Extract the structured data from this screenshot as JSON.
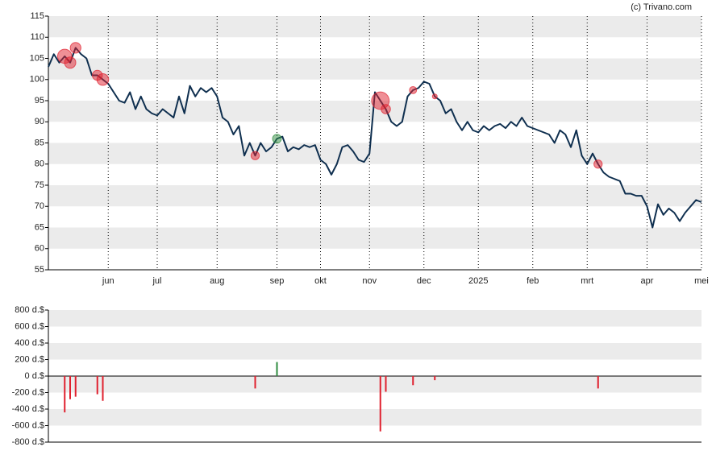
{
  "chart_data": [
    {
      "type": "line",
      "source": "(c) Trivano.com",
      "color": "#0f2f4f",
      "grid": true,
      "stripe_color": "#ebebeb",
      "categories": [
        null,
        null,
        null,
        null,
        null,
        null,
        null,
        null,
        null,
        null,
        null,
        "jun",
        null,
        null,
        null,
        null,
        null,
        null,
        null,
        null,
        "jul",
        null,
        null,
        null,
        null,
        null,
        null,
        null,
        null,
        null,
        null,
        "aug",
        null,
        null,
        null,
        null,
        null,
        null,
        null,
        null,
        null,
        null,
        "sep",
        null,
        null,
        null,
        null,
        null,
        null,
        null,
        "okt",
        null,
        null,
        null,
        null,
        null,
        null,
        null,
        null,
        "nov",
        null,
        null,
        null,
        null,
        null,
        null,
        null,
        null,
        null,
        "dec",
        null,
        null,
        null,
        null,
        null,
        null,
        null,
        null,
        null,
        "2025",
        null,
        null,
        null,
        null,
        null,
        null,
        null,
        null,
        null,
        "feb",
        null,
        null,
        null,
        null,
        null,
        null,
        null,
        null,
        null,
        "mrt",
        null,
        null,
        null,
        null,
        null,
        null,
        null,
        null,
        null,
        null,
        "apr",
        null,
        null,
        null,
        null,
        null,
        null,
        null,
        null,
        null,
        "mei"
      ],
      "values": [
        103,
        106,
        104,
        105.5,
        104,
        107.5,
        106,
        105,
        101,
        101,
        100,
        99,
        97,
        95,
        94.5,
        97,
        93,
        96,
        93,
        92,
        91.5,
        93,
        92,
        91,
        96,
        92,
        98.5,
        96,
        98,
        97,
        98,
        96,
        91,
        90,
        87,
        89,
        82,
        85,
        82,
        85,
        83,
        84,
        86,
        86.5,
        83,
        84,
        83.5,
        84.5,
        84,
        84.5,
        81,
        80,
        77.5,
        80,
        84,
        84.5,
        83,
        81,
        80.5,
        82.5,
        97,
        95,
        93,
        90,
        89,
        90,
        96,
        97.5,
        98,
        99.5,
        99,
        96,
        95,
        92,
        93,
        90,
        88,
        90,
        88,
        87.5,
        89,
        88,
        89,
        89.5,
        88.5,
        90,
        89,
        91,
        89,
        88.5,
        88,
        87.5,
        87,
        85,
        88,
        87,
        84,
        88,
        82,
        80,
        82.5,
        80,
        78,
        77,
        76.5,
        76,
        73,
        73,
        72.5,
        72.5,
        70,
        65,
        70.5,
        68,
        69.5,
        68.5,
        66.5,
        68.5,
        70,
        71.5,
        71
      ],
      "ylim": [
        55,
        115
      ],
      "yticks": [
        55,
        60,
        65,
        70,
        75,
        80,
        85,
        90,
        95,
        100,
        105,
        110,
        115
      ]
    },
    {
      "type": "bar",
      "positive_color": "#2e8b3e",
      "negative_color": "#e0202e",
      "stripe_color": "#ebebeb",
      "values": [
        null,
        null,
        null,
        -440,
        -280,
        -250,
        null,
        null,
        null,
        -220,
        -300,
        null,
        null,
        null,
        null,
        null,
        null,
        null,
        null,
        null,
        null,
        null,
        null,
        null,
        null,
        null,
        null,
        null,
        null,
        null,
        null,
        null,
        null,
        null,
        null,
        null,
        null,
        null,
        -150,
        null,
        null,
        null,
        170,
        null,
        null,
        null,
        null,
        null,
        null,
        null,
        null,
        null,
        null,
        null,
        null,
        null,
        null,
        null,
        null,
        null,
        null,
        -670,
        -190,
        null,
        null,
        null,
        null,
        -110,
        null,
        null,
        null,
        -50,
        null,
        null,
        null,
        null,
        null,
        null,
        null,
        null,
        null,
        null,
        null,
        null,
        null,
        null,
        null,
        null,
        null,
        null,
        null,
        null,
        null,
        null,
        null,
        null,
        null,
        null,
        null,
        null,
        null,
        -150,
        null,
        null,
        null,
        null,
        null,
        null,
        null,
        null,
        null,
        null,
        null,
        null,
        null,
        null,
        null,
        null,
        null,
        null,
        null
      ],
      "ylim": [
        -800,
        800
      ],
      "yticks": [
        {
          "value": -800,
          "label": "-800 d.$"
        },
        {
          "value": -600,
          "label": "-600 d.$"
        },
        {
          "value": -400,
          "label": "-400 d.$"
        },
        {
          "value": -200,
          "label": "-200 d.$"
        },
        {
          "value": 0,
          "label": "0 d.$"
        },
        {
          "value": 200,
          "label": "200 d.$"
        },
        {
          "value": 400,
          "label": "400 d.$"
        },
        {
          "value": 600,
          "label": "600 d.$"
        },
        {
          "value": 800,
          "label": "800 d.$"
        }
      ]
    }
  ]
}
